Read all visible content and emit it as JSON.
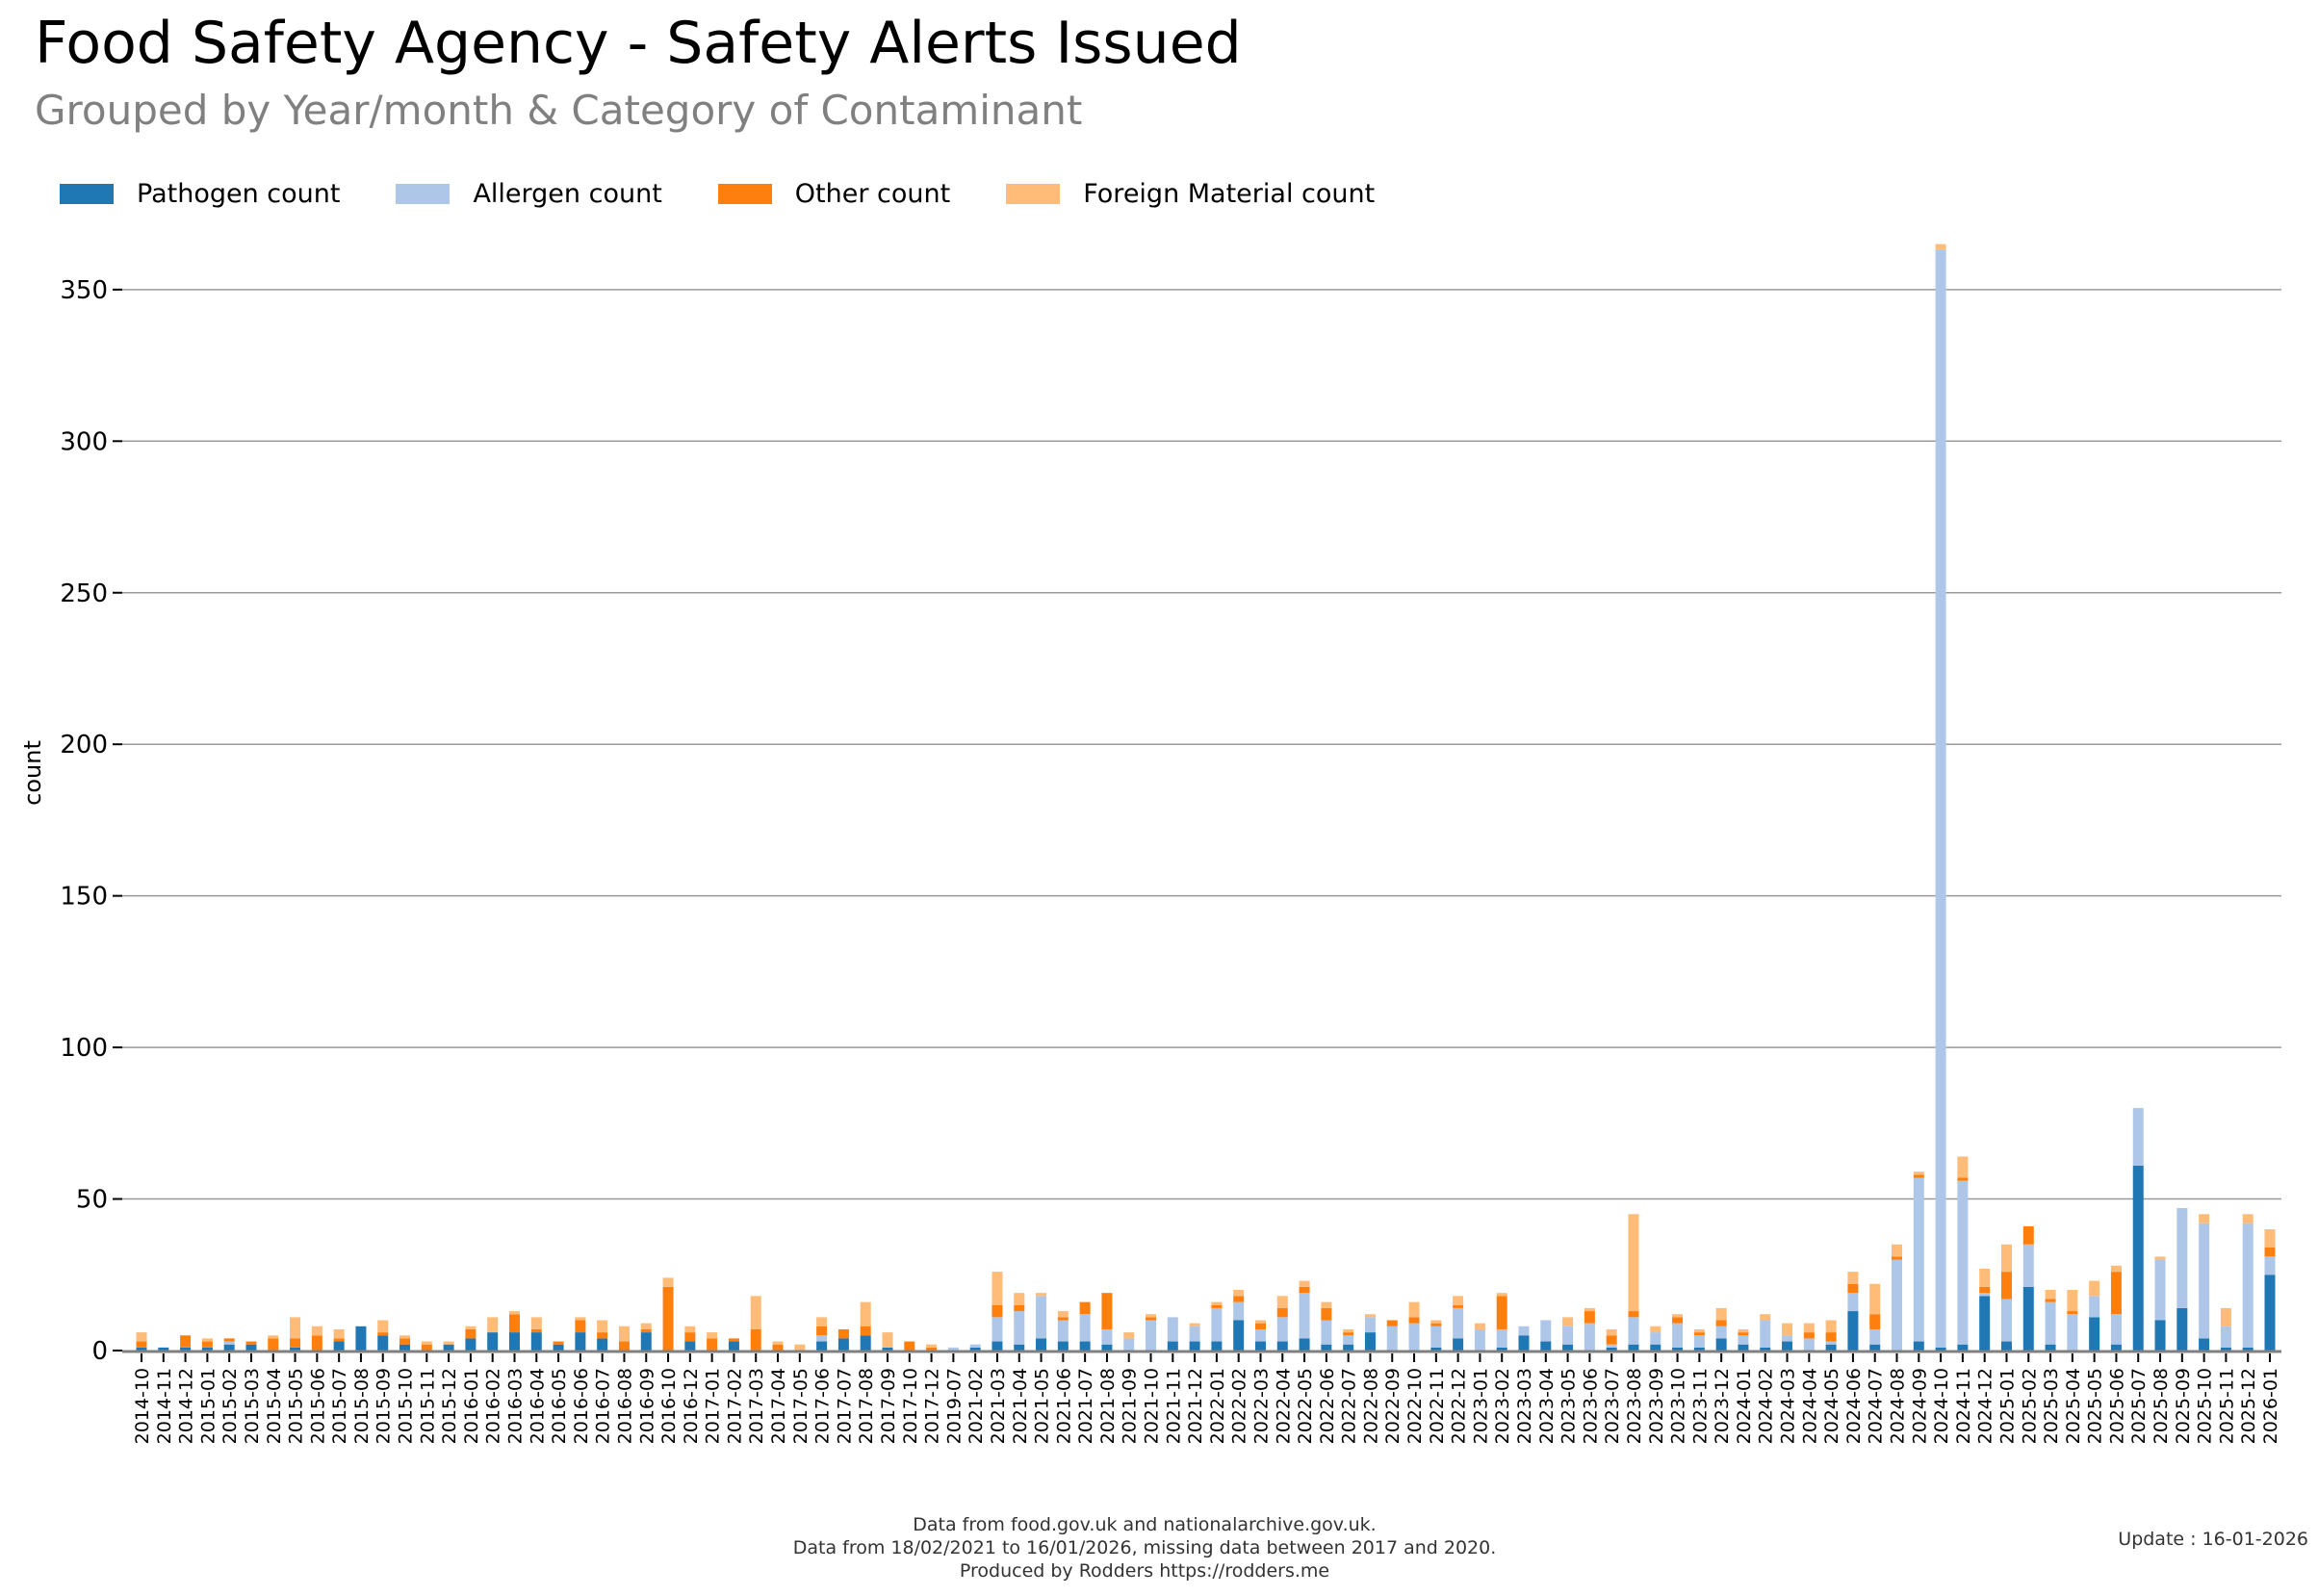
{
  "header": {
    "title": "Food Safety Agency - Safety Alerts Issued",
    "subtitle": "Grouped by Year/month & Category of Contaminant"
  },
  "footer": {
    "line1": "Data from food.gov.uk and nationalarchive.gov.uk.",
    "line2": "Data from 18/02/2021 to 16/01/2026, missing data between 2017 and 2020.",
    "line3": "Produced by Rodders https://rodders.me",
    "update": "Update : 16-01-2026"
  },
  "chart_data": {
    "type": "bar",
    "stacked": true,
    "title": "Food Safety Agency - Safety Alerts Issued",
    "subtitle": "Grouped by Year/month & Category of Contaminant",
    "xlabel": "",
    "ylabel": "count",
    "ylim": [
      0,
      365
    ],
    "yticks": [
      0,
      50,
      100,
      150,
      200,
      250,
      300,
      350
    ],
    "grid": "horizontal",
    "legend_position": "top-left",
    "categories": [
      "2014-10",
      "2014-11",
      "2014-12",
      "2015-01",
      "2015-02",
      "2015-03",
      "2015-04",
      "2015-05",
      "2015-06",
      "2015-07",
      "2015-08",
      "2015-09",
      "2015-10",
      "2015-11",
      "2015-12",
      "2016-01",
      "2016-02",
      "2016-03",
      "2016-04",
      "2016-05",
      "2016-06",
      "2016-07",
      "2016-08",
      "2016-09",
      "2016-10",
      "2016-12",
      "2017-01",
      "2017-02",
      "2017-03",
      "2017-04",
      "2017-05",
      "2017-06",
      "2017-07",
      "2017-08",
      "2017-09",
      "2017-10",
      "2017-12",
      "2019-07",
      "2021-02",
      "2021-03",
      "2021-04",
      "2021-05",
      "2021-06",
      "2021-07",
      "2021-08",
      "2021-09",
      "2021-10",
      "2021-11",
      "2021-12",
      "2022-01",
      "2022-02",
      "2022-03",
      "2022-04",
      "2022-05",
      "2022-06",
      "2022-07",
      "2022-08",
      "2022-09",
      "2022-10",
      "2022-11",
      "2022-12",
      "2023-01",
      "2023-02",
      "2023-03",
      "2023-04",
      "2023-05",
      "2023-06",
      "2023-07",
      "2023-08",
      "2023-09",
      "2023-10",
      "2023-11",
      "2023-12",
      "2024-01",
      "2024-02",
      "2024-03",
      "2024-04",
      "2024-05",
      "2024-06",
      "2024-07",
      "2024-08",
      "2024-09",
      "2024-10",
      "2024-11",
      "2024-12",
      "2025-01",
      "2025-02",
      "2025-03",
      "2025-04",
      "2025-05",
      "2025-06",
      "2025-07",
      "2025-08",
      "2025-09",
      "2025-10",
      "2025-11",
      "2025-12",
      "2026-01"
    ],
    "series": [
      {
        "name": "Pathogen count",
        "color": "#1f77b4",
        "values": [
          1,
          1,
          1,
          1,
          2,
          2,
          0,
          1,
          0,
          3,
          8,
          5,
          2,
          0,
          2,
          4,
          6,
          6,
          6,
          2,
          6,
          4,
          0,
          6,
          0,
          3,
          0,
          3,
          0,
          0,
          0,
          3,
          4,
          5,
          1,
          0,
          0,
          0,
          1,
          3,
          2,
          4,
          3,
          3,
          2,
          0,
          0,
          3,
          3,
          3,
          10,
          3,
          3,
          4,
          2,
          2,
          6,
          0,
          0,
          1,
          4,
          0,
          1,
          5,
          3,
          2,
          0,
          1,
          2,
          2,
          1,
          1,
          4,
          2,
          1,
          3,
          0,
          2,
          13,
          2,
          0,
          3,
          1,
          2,
          18,
          3,
          21,
          2,
          0,
          11,
          2,
          61,
          10,
          14,
          4,
          1,
          1,
          25
        ]
      },
      {
        "name": "Allergen count",
        "color": "#aec7e8",
        "values": [
          0,
          0,
          0,
          0,
          1,
          0,
          0,
          0,
          0,
          0,
          0,
          0,
          0,
          0,
          0,
          0,
          0,
          0,
          0,
          0,
          0,
          0,
          0,
          0,
          0,
          0,
          0,
          0,
          0,
          0,
          0,
          2,
          0,
          0,
          0,
          0,
          0,
          1,
          1,
          8,
          11,
          14,
          7,
          9,
          5,
          4,
          10,
          8,
          5,
          11,
          6,
          4,
          8,
          15,
          8,
          3,
          5,
          8,
          9,
          7,
          10,
          7,
          6,
          3,
          7,
          6,
          9,
          1,
          9,
          4,
          8,
          4,
          4,
          3,
          9,
          2,
          4,
          1,
          6,
          5,
          30,
          54,
          362,
          54,
          1,
          14,
          14,
          14,
          12,
          7,
          10,
          19,
          20,
          33,
          38,
          7,
          41,
          6
        ]
      },
      {
        "name": "Other count",
        "color": "#ff7f0e",
        "values": [
          2,
          0,
          4,
          2,
          1,
          1,
          4,
          3,
          5,
          1,
          0,
          1,
          2,
          2,
          0,
          3,
          0,
          6,
          1,
          1,
          4,
          2,
          3,
          1,
          21,
          3,
          4,
          1,
          7,
          2,
          0,
          3,
          3,
          3,
          0,
          3,
          1,
          0,
          0,
          4,
          2,
          0,
          1,
          4,
          12,
          0,
          1,
          0,
          0,
          1,
          2,
          2,
          3,
          2,
          4,
          1,
          0,
          2,
          2,
          1,
          1,
          0,
          11,
          0,
          0,
          0,
          4,
          3,
          2,
          0,
          2,
          1,
          2,
          1,
          0,
          0,
          2,
          3,
          3,
          5,
          1,
          1,
          0,
          1,
          2,
          9,
          6,
          1,
          1,
          0,
          14,
          0,
          0,
          0,
          0,
          0,
          0,
          3
        ]
      },
      {
        "name": "Foreign Material count",
        "color": "#ffbb78",
        "values": [
          3,
          0,
          0,
          1,
          0,
          0,
          1,
          7,
          3,
          3,
          0,
          4,
          1,
          1,
          1,
          1,
          5,
          1,
          4,
          0,
          1,
          4,
          5,
          2,
          3,
          2,
          2,
          0,
          11,
          1,
          2,
          3,
          0,
          8,
          5,
          0,
          1,
          0,
          0,
          11,
          4,
          1,
          2,
          0,
          0,
          2,
          1,
          0,
          1,
          1,
          2,
          1,
          4,
          2,
          2,
          1,
          1,
          0,
          5,
          1,
          3,
          2,
          1,
          0,
          0,
          3,
          1,
          2,
          32,
          2,
          1,
          1,
          4,
          1,
          2,
          4,
          3,
          4,
          4,
          10,
          4,
          1,
          2,
          7,
          6,
          9,
          0,
          3,
          7,
          5,
          2,
          0,
          1,
          0,
          3,
          6,
          3,
          6
        ]
      }
    ]
  }
}
